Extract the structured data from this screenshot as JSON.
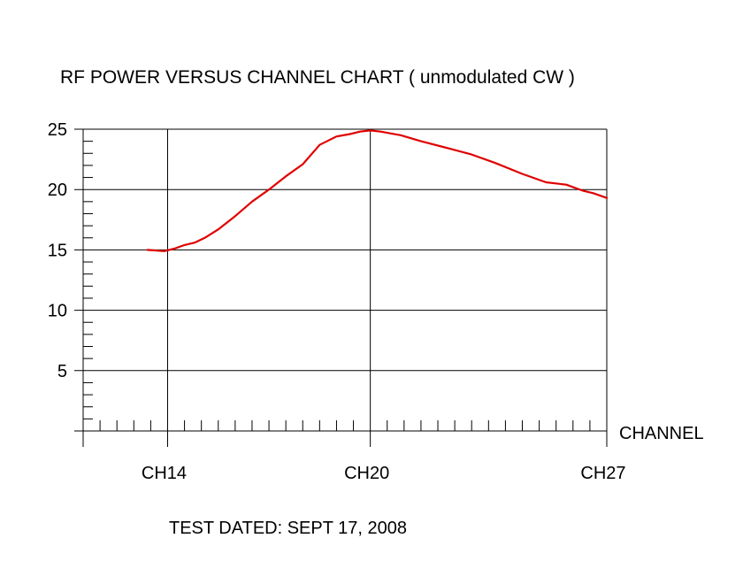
{
  "chart_data": {
    "type": "line",
    "title": "RF POWER VERSUS CHANNEL CHART ( unmodulated CW )",
    "xlabel": "CHANNEL",
    "ylabel": "",
    "footer": "TEST DATED:  SEPT 17, 2008",
    "x_range": [
      11.5,
      27
    ],
    "ylim": [
      0,
      25
    ],
    "y_ticks": [
      5,
      10,
      15,
      20,
      25
    ],
    "y_tick_labels": [
      "5",
      "10",
      "15",
      "20",
      "25"
    ],
    "x_ticks": [
      14,
      20,
      27
    ],
    "x_tick_labels": [
      "CH14",
      "CH20",
      "CH27"
    ],
    "grid": true,
    "line_color": "#e00000",
    "series": [
      {
        "name": "",
        "x": [
          13.4,
          13.9,
          14.2,
          14.5,
          14.8,
          15.1,
          15.5,
          16.0,
          16.5,
          17.0,
          17.5,
          18.0,
          18.5,
          19.0,
          19.4,
          19.7,
          20.0,
          20.3,
          20.9,
          21.5,
          22.2,
          23.0,
          23.7,
          24.5,
          25.2,
          25.8,
          26.3,
          26.6,
          27.0
        ],
        "y": [
          15.0,
          14.9,
          15.1,
          15.4,
          15.6,
          16.0,
          16.7,
          17.8,
          19.0,
          20.0,
          21.1,
          22.1,
          23.7,
          24.4,
          24.6,
          24.8,
          24.9,
          24.8,
          24.5,
          24.0,
          23.5,
          22.9,
          22.2,
          21.3,
          20.6,
          20.4,
          19.9,
          19.7,
          19.3
        ]
      }
    ]
  }
}
